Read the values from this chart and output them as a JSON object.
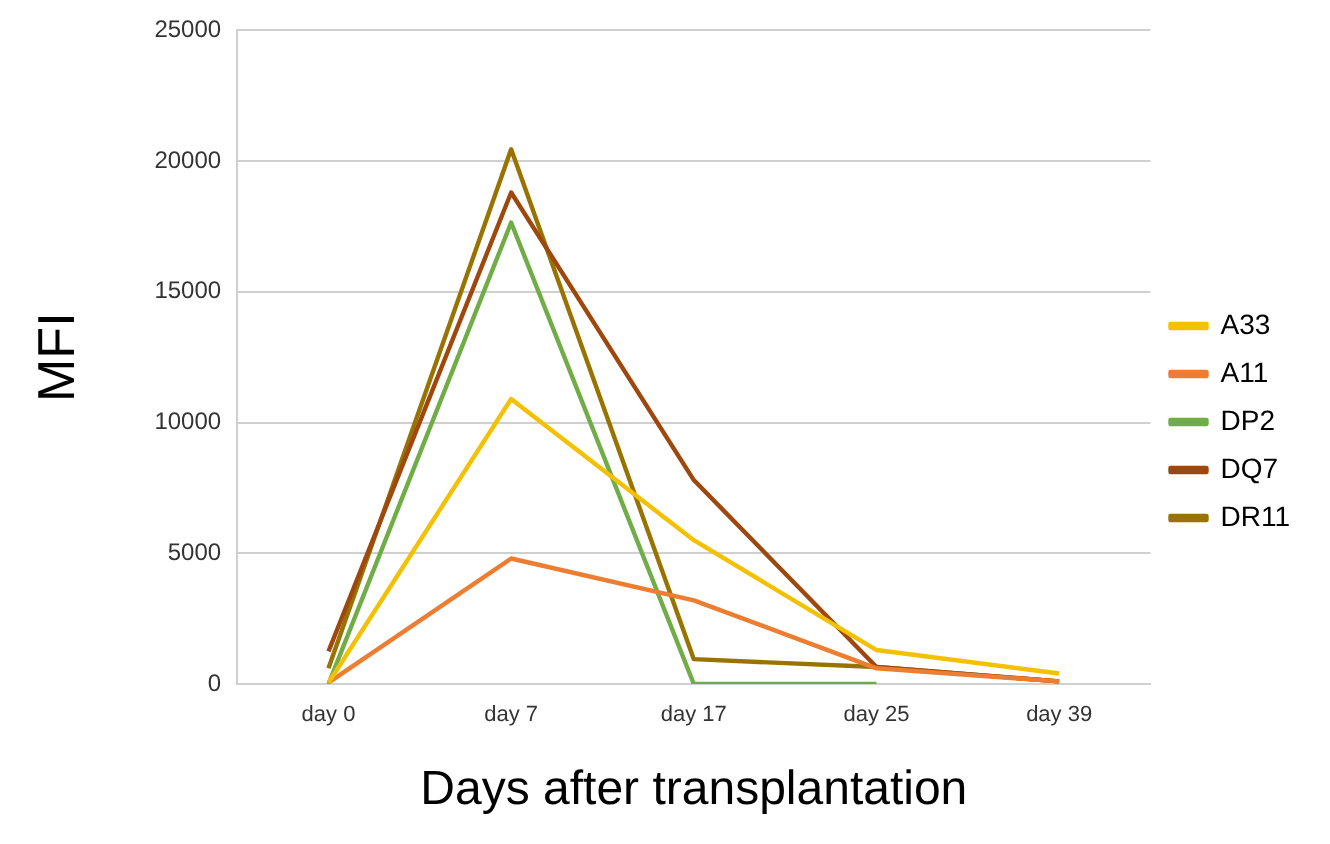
{
  "chart_data": {
    "type": "line",
    "xlabel": "Days after transplantation",
    "ylabel": "MFI",
    "categories": [
      "day 0",
      "day 7",
      "day 17",
      "day 25",
      "day 39"
    ],
    "series": [
      {
        "name": "A33",
        "color": "#f5c000",
        "values": [
          50,
          10900,
          5500,
          1300,
          400
        ]
      },
      {
        "name": "A11",
        "color": "#ed7d31",
        "values": [
          50,
          4800,
          3200,
          600,
          100
        ]
      },
      {
        "name": "DP2",
        "color": "#70ad47",
        "values": [
          0,
          17650,
          0,
          0,
          null
        ]
      },
      {
        "name": "DQ7",
        "color": "#9e480e",
        "values": [
          1250,
          18800,
          7800,
          650,
          100
        ]
      },
      {
        "name": "DR11",
        "color": "#997300",
        "values": [
          600,
          20450,
          950,
          650,
          100
        ]
      }
    ],
    "ylim": [
      0,
      25000
    ],
    "yticks": [
      0,
      5000,
      10000,
      15000,
      20000,
      25000
    ],
    "grid": "y",
    "legend": "right",
    "marker": "none",
    "line_style": "solid"
  }
}
